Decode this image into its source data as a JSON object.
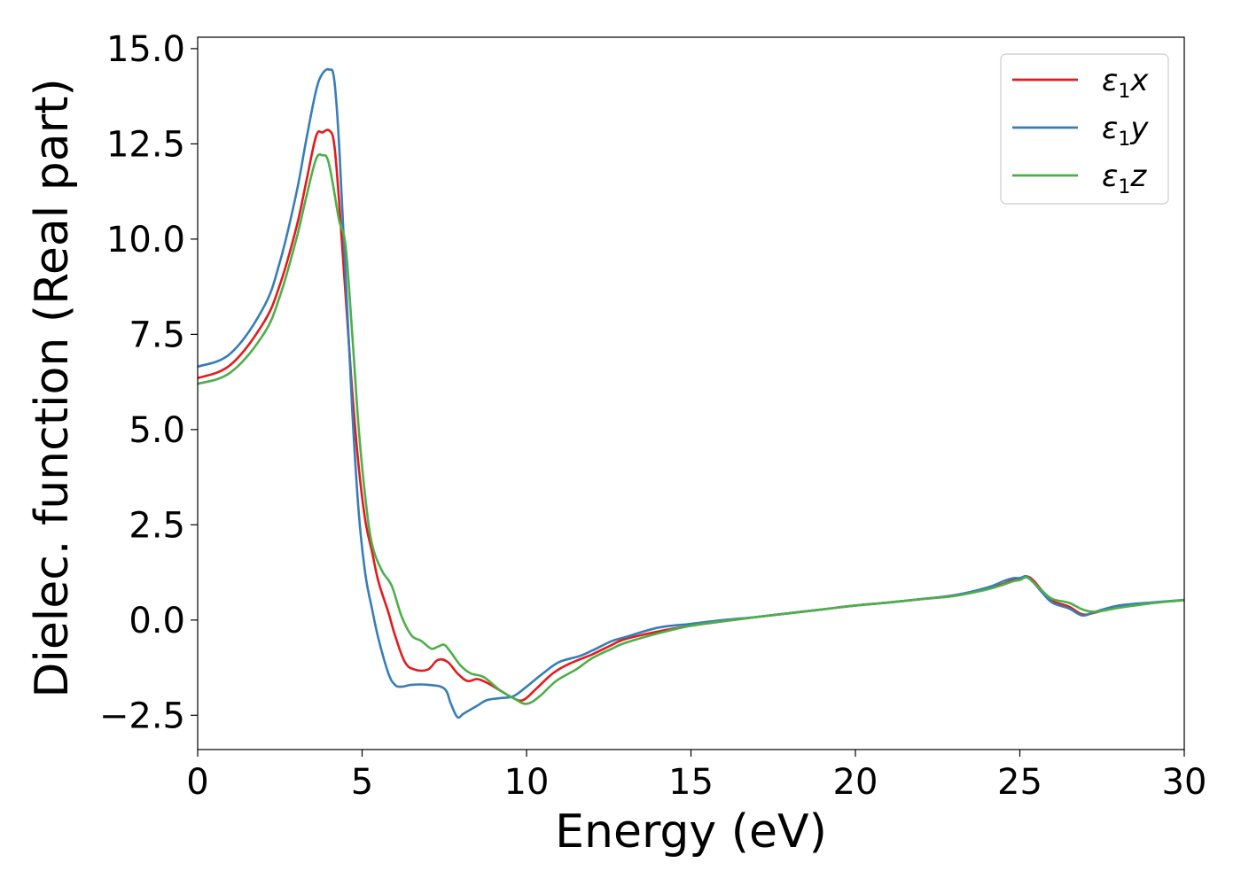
{
  "chart_data": {
    "type": "line",
    "xlabel": "Energy (eV)",
    "ylabel": "Dielec. function (Real part)",
    "xlim": [
      0,
      30
    ],
    "ylim": [
      -3.4,
      15.3
    ],
    "xticks": [
      0,
      5,
      10,
      15,
      20,
      25,
      30
    ],
    "xtick_labels": [
      "0",
      "5",
      "10",
      "15",
      "20",
      "25",
      "30"
    ],
    "yticks": [
      -2.5,
      0.0,
      2.5,
      5.0,
      7.5,
      10.0,
      12.5,
      15.0
    ],
    "ytick_labels": [
      "−2.5",
      "0.0",
      "2.5",
      "5.0",
      "7.5",
      "10.0",
      "12.5",
      "15.0"
    ],
    "grid": false,
    "legend_position": "top-right",
    "series": [
      {
        "name": "ε1x",
        "legend_base": "ε",
        "legend_sub": "1",
        "legend_suffix": "x",
        "color": "#e41a1c",
        "x": [
          0,
          1,
          2,
          2.5,
          3,
          3.3,
          3.6,
          3.8,
          4.0,
          4.15,
          4.3,
          4.5,
          4.7,
          4.9,
          5.1,
          5.3,
          5.5,
          5.8,
          6.0,
          6.3,
          6.6,
          7.0,
          7.3,
          7.6,
          7.9,
          8.2,
          8.5,
          8.8,
          9.2,
          9.6,
          9.9,
          10.3,
          10.8,
          11.3,
          12.0,
          12.6,
          13.0,
          14.0,
          15.0,
          16.0,
          17.0,
          18.0,
          19.0,
          20.0,
          21.0,
          22.0,
          23.0,
          24.0,
          24.5,
          24.8,
          25.0,
          25.2,
          25.4,
          25.7,
          26.0,
          26.5,
          26.9,
          27.3,
          28.0,
          29.0,
          30.0
        ],
        "y": [
          6.35,
          6.7,
          7.8,
          8.8,
          10.3,
          11.5,
          12.7,
          12.8,
          12.85,
          12.5,
          11.0,
          8.5,
          6.0,
          4.0,
          2.6,
          1.8,
          1.0,
          0.2,
          -0.4,
          -1.1,
          -1.3,
          -1.3,
          -1.05,
          -1.1,
          -1.4,
          -1.6,
          -1.55,
          -1.65,
          -1.85,
          -2.05,
          -2.1,
          -1.8,
          -1.4,
          -1.15,
          -0.9,
          -0.65,
          -0.5,
          -0.3,
          -0.15,
          -0.03,
          0.08,
          0.18,
          0.28,
          0.38,
          0.46,
          0.55,
          0.65,
          0.82,
          0.95,
          1.05,
          1.1,
          1.15,
          1.05,
          0.75,
          0.5,
          0.35,
          0.15,
          0.2,
          0.35,
          0.45,
          0.52
        ]
      },
      {
        "name": "ε1y",
        "legend_base": "ε",
        "legend_sub": "1",
        "legend_suffix": "y",
        "color": "#377eb8",
        "x": [
          0,
          1,
          2,
          2.5,
          3,
          3.3,
          3.6,
          3.8,
          4.0,
          4.15,
          4.3,
          4.5,
          4.7,
          4.9,
          5.1,
          5.3,
          5.5,
          5.8,
          6.0,
          6.2,
          6.5,
          7.0,
          7.5,
          7.7,
          7.9,
          8.1,
          8.5,
          8.8,
          9.2,
          9.6,
          10.0,
          10.5,
          11.0,
          11.6,
          12.0,
          12.6,
          13.0,
          14.0,
          15.0,
          16.0,
          17.0,
          18.0,
          19.0,
          20.0,
          21.0,
          22.0,
          23.0,
          24.0,
          24.5,
          24.8,
          25.0,
          25.2,
          25.4,
          25.7,
          26.0,
          26.5,
          26.9,
          27.3,
          28.0,
          29.0,
          30.0
        ],
        "y": [
          6.65,
          7.0,
          8.2,
          9.4,
          11.2,
          12.6,
          13.9,
          14.35,
          14.45,
          14.2,
          12.5,
          9.0,
          5.5,
          2.8,
          1.2,
          0.3,
          -0.5,
          -1.4,
          -1.7,
          -1.75,
          -1.7,
          -1.7,
          -1.8,
          -2.2,
          -2.55,
          -2.45,
          -2.25,
          -2.1,
          -2.05,
          -2.0,
          -1.75,
          -1.4,
          -1.1,
          -0.95,
          -0.8,
          -0.55,
          -0.45,
          -0.2,
          -0.1,
          0.0,
          0.08,
          0.18,
          0.28,
          0.38,
          0.46,
          0.55,
          0.65,
          0.85,
          1.02,
          1.1,
          1.1,
          1.15,
          1.0,
          0.7,
          0.45,
          0.3,
          0.12,
          0.22,
          0.38,
          0.46,
          0.53
        ]
      },
      {
        "name": "ε1z",
        "legend_base": "ε",
        "legend_sub": "1",
        "legend_suffix": "z",
        "color": "#4daf4a",
        "x": [
          0,
          1,
          2,
          2.5,
          3,
          3.3,
          3.6,
          3.8,
          3.95,
          4.1,
          4.3,
          4.5,
          4.7,
          4.9,
          5.1,
          5.3,
          5.6,
          5.9,
          6.2,
          6.5,
          6.8,
          7.1,
          7.3,
          7.5,
          7.7,
          8.0,
          8.3,
          8.7,
          9.2,
          9.6,
          10.0,
          10.4,
          10.9,
          11.5,
          12.0,
          12.6,
          13.0,
          14.0,
          15.0,
          16.0,
          17.0,
          18.0,
          19.0,
          20.0,
          21.0,
          22.0,
          23.0,
          24.0,
          24.5,
          24.8,
          25.0,
          25.2,
          25.4,
          25.7,
          26.0,
          26.5,
          26.9,
          27.3,
          28.0,
          29.0,
          30.0
        ],
        "y": [
          6.2,
          6.5,
          7.5,
          8.5,
          10.0,
          11.1,
          12.1,
          12.2,
          12.1,
          11.5,
          10.5,
          9.8,
          7.5,
          5.0,
          3.2,
          2.0,
          1.3,
          0.9,
          0.1,
          -0.4,
          -0.55,
          -0.75,
          -0.7,
          -0.65,
          -0.85,
          -1.2,
          -1.4,
          -1.5,
          -1.85,
          -2.05,
          -2.2,
          -2.0,
          -1.6,
          -1.3,
          -1.0,
          -0.75,
          -0.6,
          -0.35,
          -0.15,
          -0.03,
          0.08,
          0.18,
          0.28,
          0.38,
          0.46,
          0.55,
          0.63,
          0.8,
          0.93,
          1.02,
          1.05,
          1.12,
          1.0,
          0.75,
          0.55,
          0.45,
          0.28,
          0.22,
          0.32,
          0.44,
          0.52
        ]
      }
    ]
  }
}
